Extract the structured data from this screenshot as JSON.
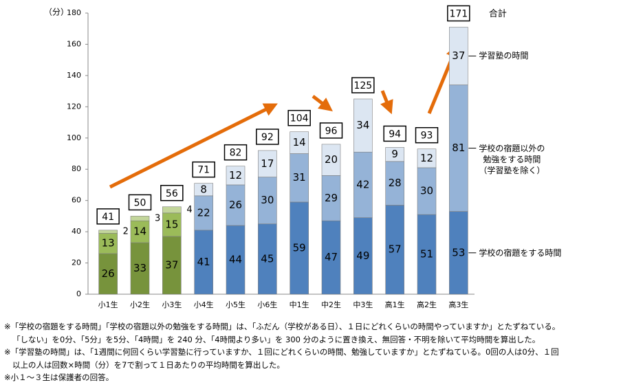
{
  "chart_data": {
    "type": "stacked_bar",
    "y_unit": "（分）",
    "categories": [
      "小1生",
      "小2生",
      "小3生",
      "小4生",
      "小5生",
      "小6生",
      "中1生",
      "中2生",
      "中3生",
      "高1生",
      "高2生",
      "高3生"
    ],
    "series": [
      {
        "name": "学校の宿題をする時間",
        "color": "#4f81bd",
        "colors": [
          "#77933c",
          "#77933c",
          "#77933c",
          "#4f81bd",
          "#4f81bd",
          "#4f81bd",
          "#4f81bd",
          "#4f81bd",
          "#4f81bd",
          "#4f81bd",
          "#4f81bd",
          "#4f81bd"
        ],
        "values": [
          26,
          33,
          37,
          41,
          44,
          45,
          59,
          47,
          49,
          57,
          51,
          53
        ]
      },
      {
        "name": "学校の宿題以外の\n勉強をする時間\n（学習塾を除く）",
        "color": "#95b3d7",
        "colors": [
          "#9bbb59",
          "#9bbb59",
          "#9bbb59",
          "#95b3d7",
          "#95b3d7",
          "#95b3d7",
          "#95b3d7",
          "#95b3d7",
          "#95b3d7",
          "#95b3d7",
          "#95b3d7",
          "#95b3d7"
        ],
        "values": [
          13,
          14,
          15,
          22,
          26,
          30,
          31,
          29,
          42,
          28,
          30,
          81
        ]
      },
      {
        "name": "学習塾の時間",
        "color": "#dce6f2",
        "colors": [
          "#c3d69b",
          "#c3d69b",
          "#c3d69b",
          "#dce6f2",
          "#dce6f2",
          "#dce6f2",
          "#dce6f2",
          "#dce6f2",
          "#dce6f2",
          "#dce6f2",
          "#dce6f2",
          "#dce6f2"
        ],
        "values": [
          2,
          3,
          4,
          8,
          12,
          17,
          14,
          20,
          34,
          9,
          12,
          37
        ]
      }
    ],
    "totals_label": "合計",
    "totals": [
      41,
      50,
      56,
      71,
      82,
      92,
      104,
      96,
      125,
      94,
      93,
      171
    ],
    "ylim": [
      0,
      180
    ],
    "yticks": [
      0,
      20,
      40,
      60,
      80,
      100,
      120,
      140,
      160,
      180
    ],
    "grid": false,
    "notes": [
      "※「学校の宿題をする時間」「学校の宿題以外の勉強をする時間」は、「ふだん（学校がある日）、１日にどれくらいの時間やっていますか」とたずねている。",
      "「しない」を0分、「5分」を5分、「4時間」を 240 分、「4時間より多い」を 300 分のように置き換え、無回答・不明を除いて平均時間を算出した。",
      "※「学習塾の時間」は、「1週間に何回くらい学習塾に行っていますか、１回にどれくらいの時間、勉強していますか」とたずねている。0回の人は0分、１回",
      "以上の人は回数×時間（分）を7で割って１日あたりの平均時間を算出した。",
      "※小１～３生は保護者の回答。"
    ]
  }
}
